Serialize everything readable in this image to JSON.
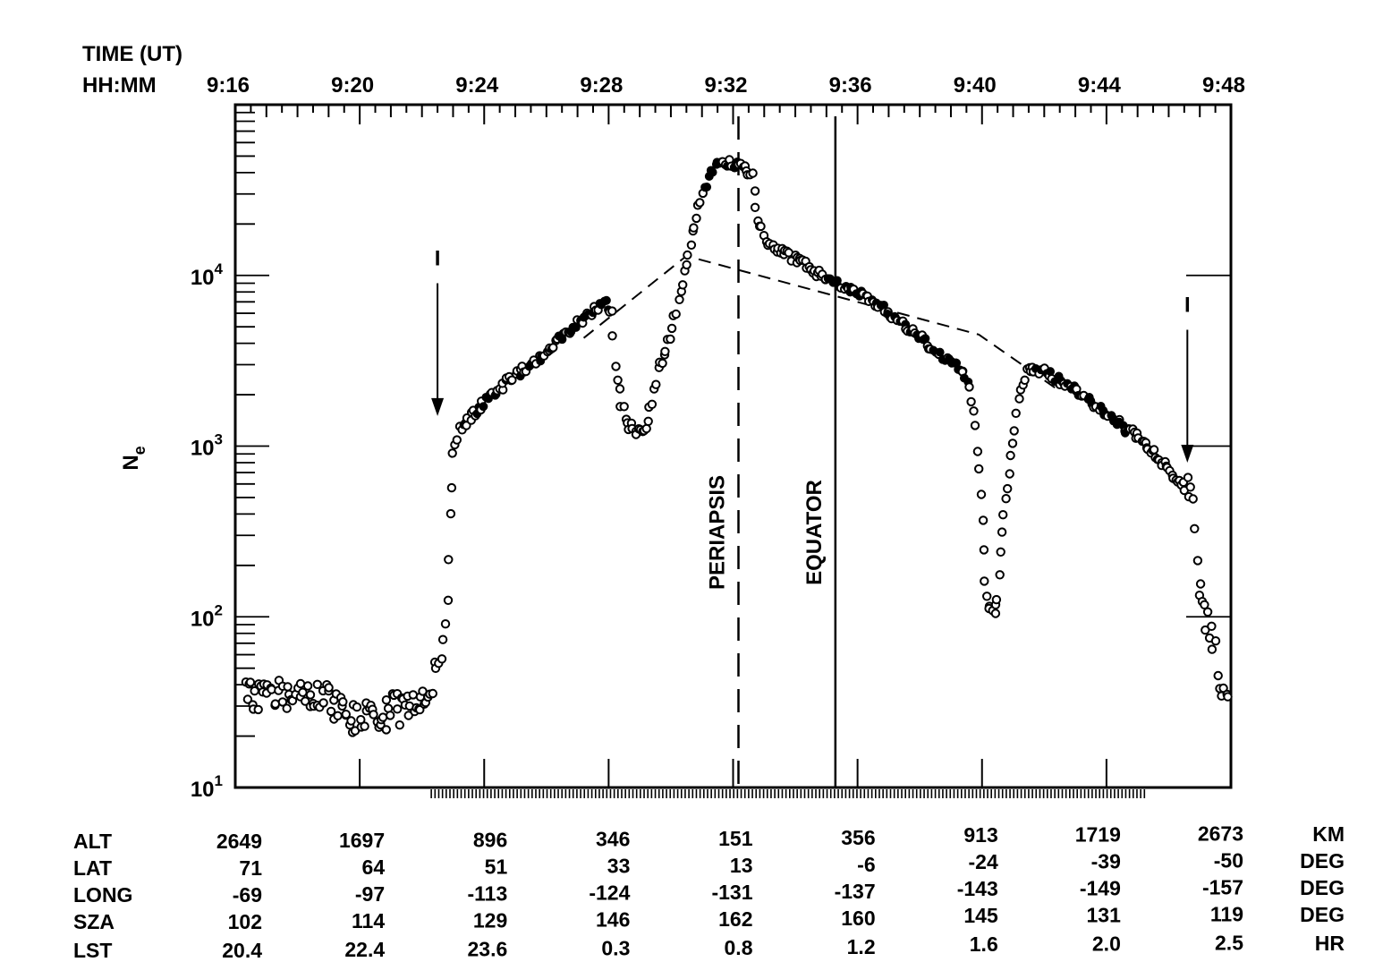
{
  "chart_data": {
    "type": "scatter",
    "title": "",
    "top_axis": {
      "label_line1": "TIME (UT)",
      "label_line2": "HH:MM",
      "ticks": [
        "9:16",
        "9:20",
        "9:24",
        "9:28",
        "9:32",
        "9:36",
        "9:40",
        "9:44",
        "9:48"
      ]
    },
    "xlim_minutes_after_9_16": [
      0,
      32
    ],
    "y_axis": {
      "label_main": "N",
      "label_sub": "e",
      "scale": "log",
      "ylim": [
        10,
        100000
      ],
      "ticks": [
        {
          "base": "10",
          "exp": "1",
          "value": 10
        },
        {
          "base": "10",
          "exp": "2",
          "value": 100
        },
        {
          "base": "10",
          "exp": "3",
          "value": 1000
        },
        {
          "base": "10",
          "exp": "4",
          "value": 10000
        }
      ]
    },
    "markers": [
      {
        "name": "PERIAPSIS",
        "time": "9:32",
        "style": "dashed"
      },
      {
        "name": "EQUATOR",
        "time": "9:35",
        "style": "solid"
      }
    ],
    "arrows": [
      {
        "label": "I",
        "time": "9:22.5",
        "y_top": 9000,
        "y_bottom": 1500
      },
      {
        "label": "I",
        "time": "9:46.6",
        "y_top": 4800,
        "y_bottom": 800
      }
    ],
    "model_curve_dashed": [
      {
        "t": "9:27.2",
        "ne": 4300
      },
      {
        "t": "9:30.5",
        "ne": 13000
      },
      {
        "t": "9:39.9",
        "ne": 4500
      },
      {
        "t": "9:42.5",
        "ne": 2100
      }
    ],
    "series": [
      {
        "name": "",
        "points": [
          [
            "9:16.3",
            38
          ],
          [
            "9:16.6",
            34
          ],
          [
            "9:17.0",
            36
          ],
          [
            "9:17.5",
            35
          ],
          [
            "9:18.0",
            36
          ],
          [
            "9:18.5",
            34
          ],
          [
            "9:18.9",
            35
          ],
          [
            "9:19.2",
            30
          ],
          [
            "9:19.6",
            27
          ],
          [
            "9:20.0",
            24
          ],
          [
            "9:20.3",
            27
          ],
          [
            "9:20.6",
            23
          ],
          [
            "9:21.0",
            30
          ],
          [
            "9:21.4",
            28
          ],
          [
            "9:21.8",
            32
          ],
          [
            "9:22.1",
            37
          ],
          [
            "9:22.4",
            45
          ],
          [
            "9:22.6",
            58
          ],
          [
            "9:22.8",
            120
          ],
          [
            "9:22.9",
            400
          ],
          [
            "9:23.0",
            900
          ],
          [
            "9:23.2",
            1250
          ],
          [
            "9:23.6",
            1500
          ],
          [
            "9:24.0",
            1800
          ],
          [
            "9:24.5",
            2200
          ],
          [
            "9:25.0",
            2600
          ],
          [
            "9:25.5",
            3000
          ],
          [
            "9:26.0",
            3500
          ],
          [
            "9:26.5",
            4300
          ],
          [
            "9:27.0",
            5300
          ],
          [
            "9:27.5",
            6300
          ],
          [
            "9:27.9",
            7000
          ],
          [
            "9:28.1",
            6000
          ],
          [
            "9:28.2",
            3000
          ],
          [
            "9:28.4",
            1800
          ],
          [
            "9:28.6",
            1350
          ],
          [
            "9:28.9",
            1200
          ],
          [
            "9:29.2",
            1300
          ],
          [
            "9:29.4",
            1800
          ],
          [
            "9:29.6",
            2800
          ],
          [
            "9:29.9",
            4000
          ],
          [
            "9:30.1",
            5500
          ],
          [
            "9:30.3",
            8000
          ],
          [
            "9:30.5",
            12000
          ],
          [
            "9:30.7",
            18000
          ],
          [
            "9:30.9",
            25000
          ],
          [
            "9:31.1",
            32000
          ],
          [
            "9:31.3",
            40000
          ],
          [
            "9:31.5",
            46000
          ],
          [
            "9:31.9",
            46000
          ],
          [
            "9:32.3",
            44000
          ],
          [
            "9:32.6",
            38000
          ],
          [
            "9:32.8",
            22000
          ],
          [
            "9:33.0",
            17000
          ],
          [
            "9:33.2",
            15000
          ],
          [
            "9:33.5",
            14000
          ],
          [
            "9:33.8",
            13000
          ],
          [
            "9:34.2",
            12000
          ],
          [
            "9:34.6",
            10500
          ],
          [
            "9:35.0",
            9800
          ],
          [
            "9:35.5",
            8800
          ],
          [
            "9:36.0",
            8000
          ],
          [
            "9:36.5",
            7000
          ],
          [
            "9:37.0",
            6000
          ],
          [
            "9:37.5",
            5200
          ],
          [
            "9:38.0",
            4300
          ],
          [
            "9:38.5",
            3700
          ],
          [
            "9:39.0",
            3100
          ],
          [
            "9:39.4",
            2800
          ],
          [
            "9:39.6",
            2300
          ],
          [
            "9:39.8",
            1300
          ],
          [
            "9:39.9",
            700
          ],
          [
            "9:40.0",
            350
          ],
          [
            "9:40.1",
            160
          ],
          [
            "9:40.2",
            110
          ],
          [
            "9:40.4",
            100
          ],
          [
            "9:40.5",
            130
          ],
          [
            "9:40.6",
            250
          ],
          [
            "9:40.7",
            400
          ],
          [
            "9:40.9",
            700
          ],
          [
            "9:41.0",
            1000
          ],
          [
            "9:41.1",
            1600
          ],
          [
            "9:41.3",
            2400
          ],
          [
            "9:41.5",
            2900
          ],
          [
            "9:42.0",
            2700
          ],
          [
            "9:42.5",
            2400
          ],
          [
            "9:43.0",
            2100
          ],
          [
            "9:43.5",
            1800
          ],
          [
            "9:44.0",
            1550
          ],
          [
            "9:44.5",
            1300
          ],
          [
            "9:45.0",
            1150
          ],
          [
            "9:45.4",
            950
          ],
          [
            "9:45.8",
            800
          ],
          [
            "9:46.1",
            680
          ],
          [
            "9:46.4",
            620
          ],
          [
            "9:46.6",
            620
          ],
          [
            "9:46.8",
            420
          ],
          [
            "9:46.9",
            200
          ],
          [
            "9:47.0",
            130
          ],
          [
            "9:47.2",
            100
          ],
          [
            "9:47.3",
            80
          ],
          [
            "9:47.5",
            60
          ],
          [
            "9:47.7",
            36
          ],
          [
            "9:47.9",
            34
          ]
        ]
      }
    ],
    "table": {
      "columns_times": [
        "9:16",
        "9:20",
        "9:24",
        "9:28",
        "9:32",
        "9:36",
        "9:40",
        "9:44",
        "9:48"
      ],
      "rows": [
        {
          "label": "ALT",
          "unit": "KM",
          "values": [
            "2649",
            "1697",
            "896",
            "346",
            "151",
            "356",
            "913",
            "1719",
            "2673"
          ]
        },
        {
          "label": "LAT",
          "unit": "DEG",
          "values": [
            "71",
            "64",
            "51",
            "33",
            "13",
            "-6",
            "-24",
            "-39",
            "-50"
          ]
        },
        {
          "label": "LONG",
          "unit": "DEG",
          "values": [
            "-69",
            "-97",
            "-113",
            "-124",
            "-131",
            "-137",
            "-143",
            "-149",
            "-157"
          ]
        },
        {
          "label": "SZA",
          "unit": "DEG",
          "values": [
            "102",
            "114",
            "129",
            "146",
            "162",
            "160",
            "145",
            "131",
            "119"
          ]
        },
        {
          "label": "LST",
          "unit": "HR",
          "values": [
            "20.4",
            "22.4",
            "23.6",
            "0.3",
            "0.8",
            "1.2",
            "1.6",
            "2.0",
            "2.5"
          ]
        }
      ]
    }
  }
}
